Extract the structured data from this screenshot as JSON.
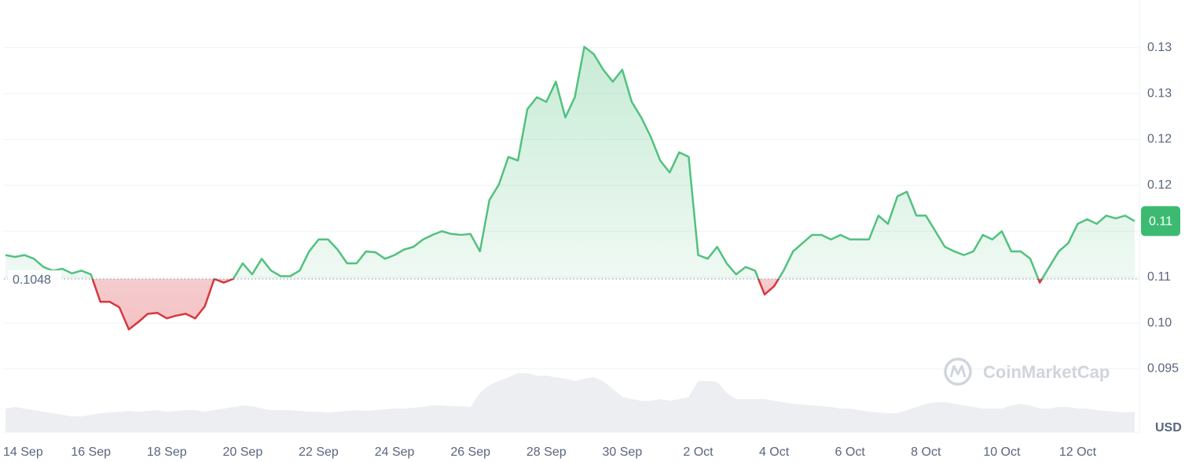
{
  "chart_data": {
    "type": "line",
    "y_unit": "USD",
    "watermark": "CoinMarketCap",
    "baseline": 0.1048,
    "last_value_label": "0.11",
    "categories": [
      null,
      "14 Sep",
      null,
      null,
      null,
      null,
      null,
      null,
      null,
      "16 Sep",
      null,
      null,
      null,
      null,
      null,
      null,
      null,
      "18 Sep",
      null,
      null,
      null,
      null,
      null,
      null,
      null,
      "20 Sep",
      null,
      null,
      null,
      null,
      null,
      null,
      null,
      "22 Sep",
      null,
      null,
      null,
      null,
      null,
      null,
      null,
      "24 Sep",
      null,
      null,
      null,
      null,
      null,
      null,
      null,
      "26 Sep",
      null,
      null,
      null,
      null,
      null,
      null,
      null,
      "28 Sep",
      null,
      null,
      null,
      null,
      null,
      null,
      null,
      "30 Sep",
      null,
      null,
      null,
      null,
      null,
      null,
      null,
      "2 Oct",
      null,
      null,
      null,
      null,
      null,
      null,
      null,
      "4 Oct",
      null,
      null,
      null,
      null,
      null,
      null,
      null,
      "6 Oct",
      null,
      null,
      null,
      null,
      null,
      null,
      null,
      "8 Oct",
      null,
      null,
      null,
      null,
      null,
      null,
      null,
      "10 Oct",
      null,
      null,
      null,
      null,
      null,
      null,
      null,
      "12 Oct",
      null,
      null,
      null,
      null,
      null,
      null
    ],
    "series": [
      {
        "name": "Price",
        "color": "#52c17f",
        "down_color": "#d8373d",
        "values": [
          0.1074,
          0.1072,
          0.1074,
          0.107,
          0.1061,
          0.1057,
          0.1059,
          0.1054,
          0.1057,
          0.1053,
          0.1023,
          0.1023,
          0.1017,
          0.0993,
          0.1001,
          0.101,
          0.1011,
          0.1005,
          0.1008,
          0.101,
          0.1005,
          0.1018,
          0.1048,
          0.1044,
          0.1048,
          0.1065,
          0.1053,
          0.107,
          0.1057,
          0.1051,
          0.1051,
          0.1057,
          0.1078,
          0.1091,
          0.1091,
          0.108,
          0.1065,
          0.1065,
          0.1078,
          0.1077,
          0.107,
          0.1074,
          0.108,
          0.1083,
          0.1091,
          0.1096,
          0.11,
          0.1097,
          0.1096,
          0.1097,
          0.1078,
          0.1134,
          0.1151,
          0.1181,
          0.1177,
          0.1233,
          0.1246,
          0.1241,
          0.1263,
          0.1224,
          0.1246,
          0.1301,
          0.1293,
          0.1276,
          0.1263,
          0.1276,
          0.1241,
          0.1224,
          0.1203,
          0.1177,
          0.1164,
          0.1186,
          0.1181,
          0.1074,
          0.107,
          0.1083,
          0.1065,
          0.1053,
          0.1061,
          0.1057,
          0.1031,
          0.104,
          0.1057,
          0.1078,
          0.1087,
          0.1096,
          0.1096,
          0.1091,
          0.1096,
          0.1091,
          0.1091,
          0.1091,
          0.1117,
          0.1108,
          0.1138,
          0.1143,
          0.1117,
          0.1117,
          0.11,
          0.1083,
          0.1078,
          0.1074,
          0.1078,
          0.1096,
          0.1091,
          0.11,
          0.1078,
          0.1078,
          0.107,
          0.1044,
          0.1061,
          0.1078,
          0.1087,
          0.1108,
          0.1113,
          0.1108,
          0.1117,
          0.1114,
          0.1117,
          0.1111
        ]
      },
      {
        "name": "Volume",
        "color": "#eceef2",
        "axis": "y2",
        "values": [
          30,
          32,
          30,
          28,
          26,
          24,
          22,
          20,
          20,
          22,
          24,
          25,
          26,
          27,
          26,
          27,
          28,
          26,
          27,
          28,
          28,
          26,
          28,
          30,
          32,
          34,
          33,
          30,
          28,
          28,
          28,
          27,
          26,
          26,
          25,
          26,
          27,
          28,
          27,
          28,
          29,
          30,
          30,
          31,
          32,
          34,
          34,
          33,
          33,
          32,
          50,
          60,
          65,
          70,
          75,
          75,
          72,
          72,
          70,
          68,
          65,
          68,
          70,
          65,
          55,
          45,
          42,
          40,
          40,
          42,
          40,
          42,
          45,
          65,
          65,
          64,
          50,
          42,
          42,
          42,
          42,
          40,
          38,
          36,
          35,
          34,
          33,
          32,
          30,
          30,
          28,
          26,
          25,
          24,
          24,
          28,
          32,
          36,
          38,
          38,
          36,
          34,
          32,
          30,
          30,
          30,
          34,
          36,
          34,
          30,
          30,
          32,
          32,
          30,
          30,
          28,
          27,
          26,
          25,
          26
        ]
      }
    ],
    "ylim": [
      0.0881,
      0.1352
    ],
    "yticks": [
      0.095,
      {
        "value": 0.1,
        "label": "0.10"
      },
      {
        "value": 0.105,
        "label": "0.11"
      },
      {
        "value": 0.11,
        "label": "0.11"
      },
      {
        "value": 0.115,
        "label": "0.12"
      },
      {
        "value": 0.12,
        "label": "0.12"
      },
      {
        "value": 0.125,
        "label": "0.13"
      },
      {
        "value": 0.13,
        "label": "0.13"
      }
    ],
    "y2lim": [
      0,
      550
    ],
    "grid": true
  }
}
